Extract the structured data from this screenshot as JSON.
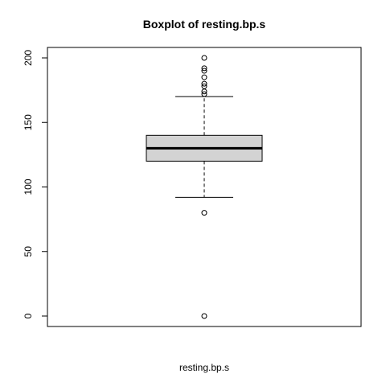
{
  "chart_data": {
    "type": "boxplot",
    "title": "Boxplot of resting.bp.s",
    "xlabel": "resting.bp.s",
    "ylabel": "",
    "ylim": [
      0,
      200
    ],
    "yticks": [
      0,
      50,
      100,
      150,
      200
    ],
    "grid": false,
    "box": {
      "lower_whisker": 92,
      "q1": 120,
      "median": 130,
      "q3": 140,
      "upper_whisker": 170,
      "fill_color": "#d3d3d3"
    },
    "outliers": [
      0,
      80,
      172,
      174,
      178,
      180,
      185,
      190,
      192,
      200
    ]
  }
}
